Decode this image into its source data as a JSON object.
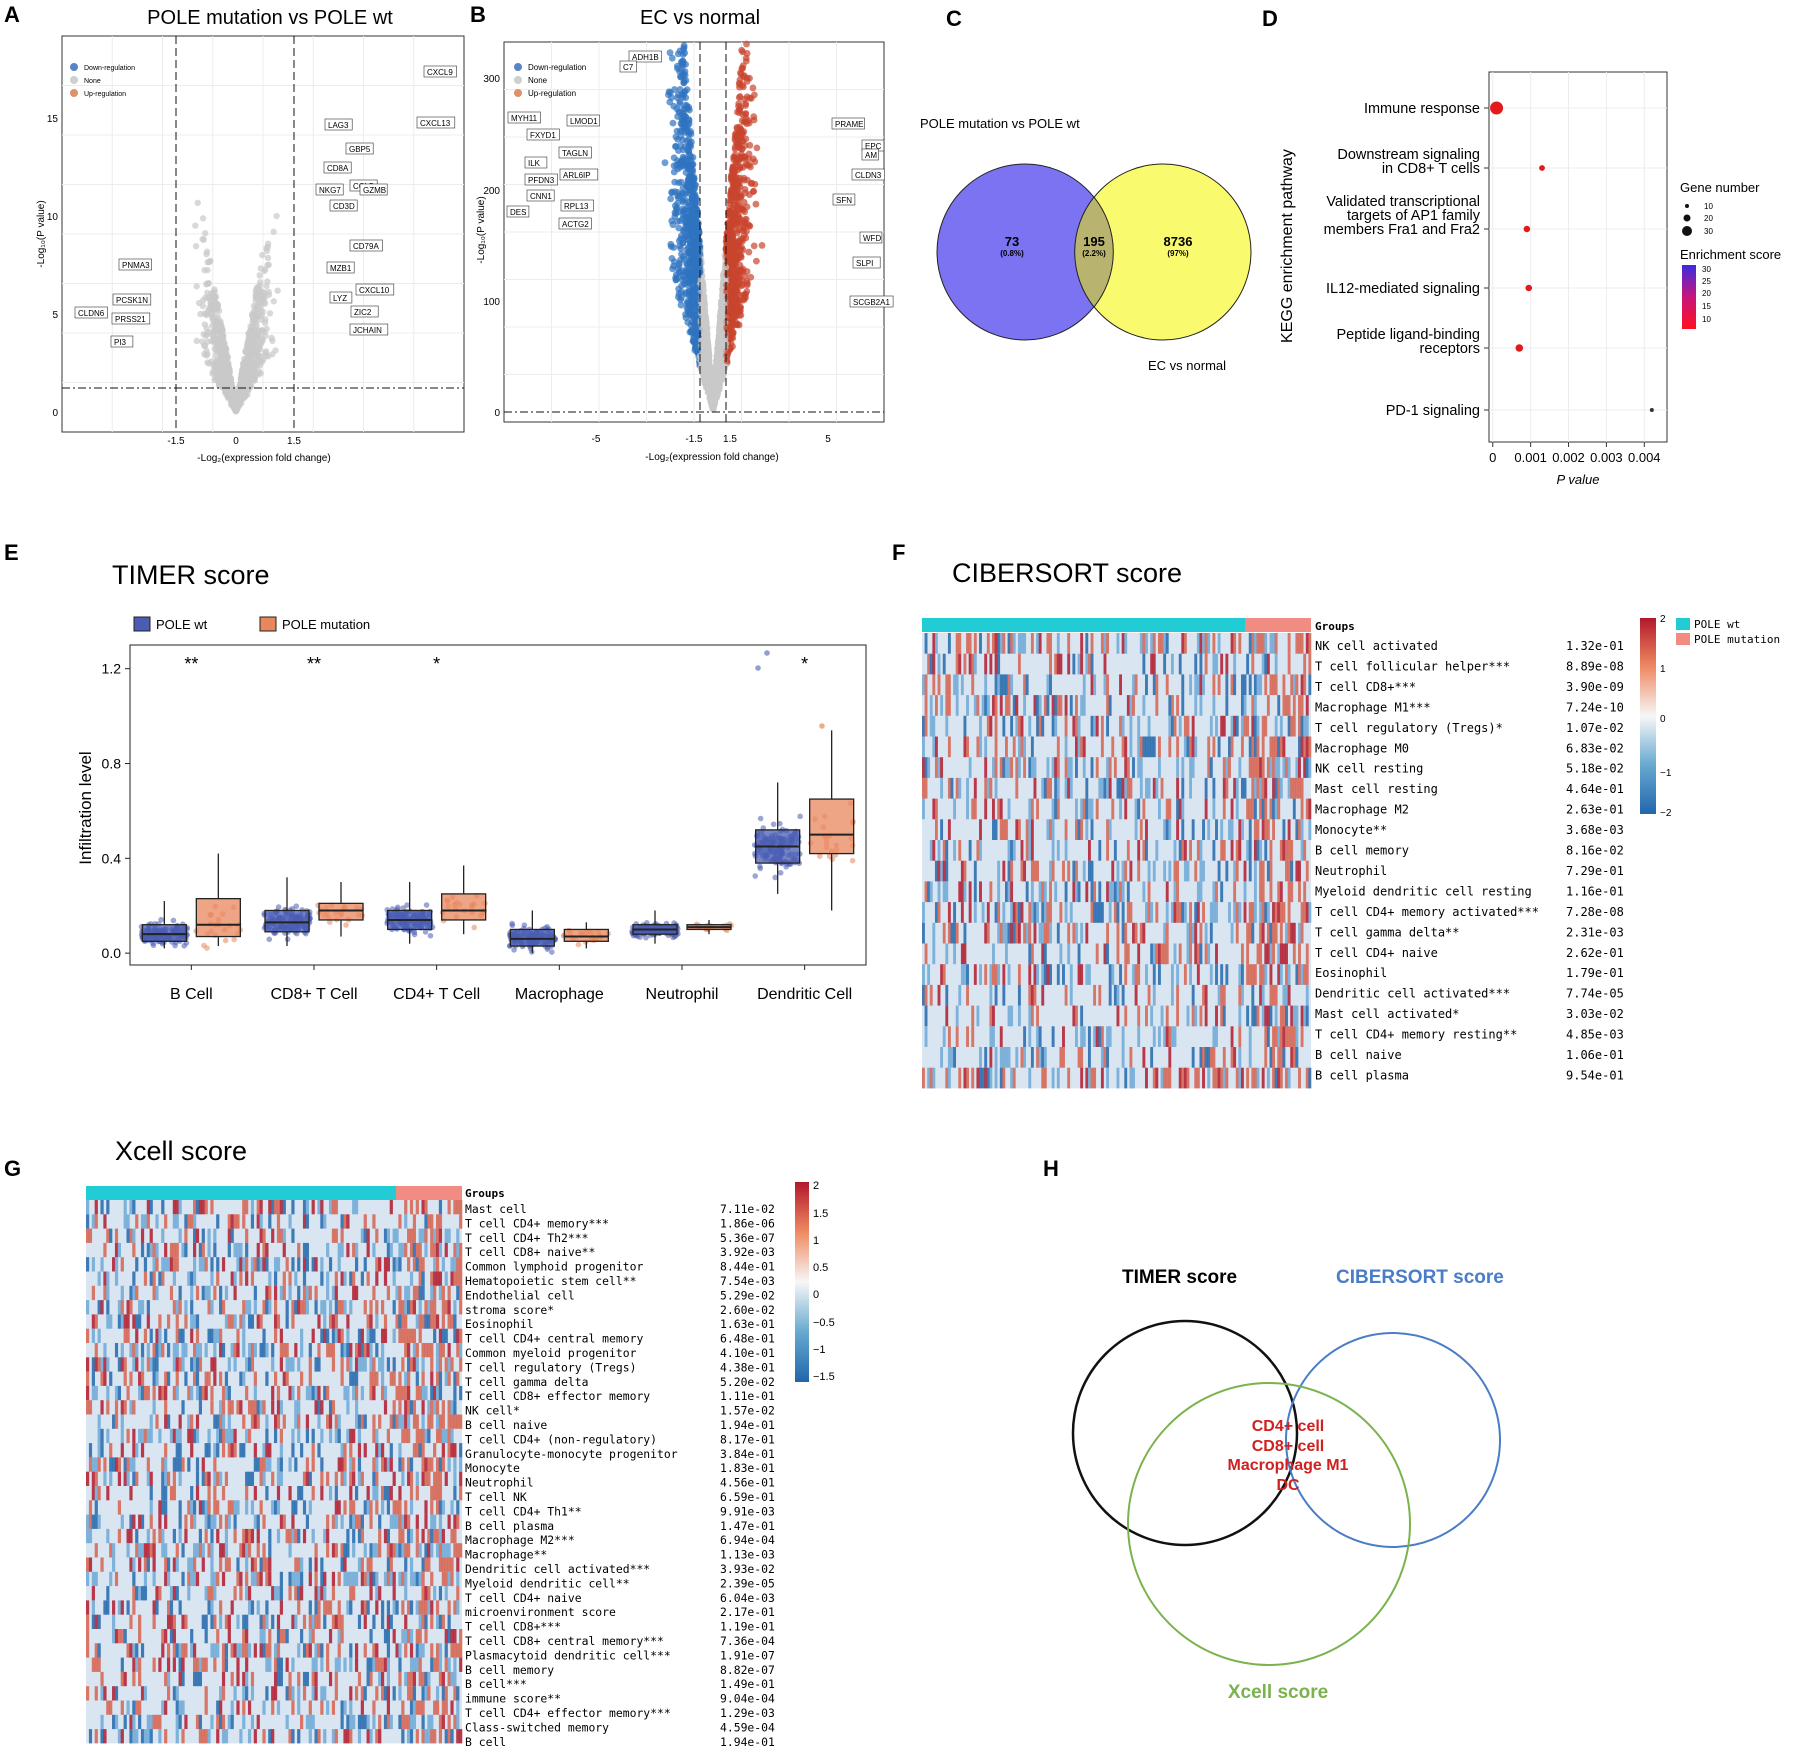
{
  "panels": {
    "A": {
      "letter": "A",
      "title": "POLE mutation vs POLE wt",
      "xlabel": "-Log₂(expression fold change)",
      "ylabel": "-Log₁₀(P value)",
      "legend": [
        "Down-regulation",
        "None",
        "Up-regulation"
      ],
      "xticks": [
        "-1.5",
        "0",
        "1.5"
      ],
      "yticks": [
        "0",
        "5",
        "10",
        "15"
      ],
      "genes_up": [
        "CXCL9",
        "CXCL13",
        "LAG3",
        "GBP5",
        "CD8A",
        "CCL5",
        "CD3D",
        "NKG7",
        "GZMB",
        "CD79A",
        "MZB1",
        "CXCL10",
        "LYZ",
        "ZIC2",
        "JCHAIN"
      ],
      "genes_down": [
        "PNMA3",
        "PCSK1N",
        "CLDN6",
        "PRSS21",
        "PI3"
      ]
    },
    "B": {
      "letter": "B",
      "title": "EC vs  normal",
      "xlabel": "-Log₂(expression fold change)",
      "ylabel": "-Log₁₀(P value)",
      "legend": [
        "Down-regulation",
        "None",
        "Up-regulation"
      ],
      "xticks": [
        "-5",
        "-1.5",
        "1.5",
        "5"
      ],
      "yticks": [
        "0",
        "100",
        "200",
        "300"
      ],
      "genes_up": [
        "PRAME",
        "EPC",
        "AM",
        "CLDN3",
        "SFN",
        "WFD",
        "SLPI",
        "SCGB2A1"
      ],
      "genes_down": [
        "ADH1B",
        "C7",
        "MYH11",
        "LMOD1",
        "FXYD1",
        "TAGLN",
        "ILK",
        "ARL6IP",
        "PFDN3",
        "CNN1",
        "RPL13",
        "DES",
        "ACTG2"
      ]
    },
    "C": {
      "letter": "C",
      "label_left": "POLE mutation vs POLE wt",
      "label_right": "EC vs  normal",
      "left_n": "73",
      "left_pct": "(0.8%)",
      "mid_n": "195",
      "mid_pct": "(2.2%)",
      "right_n": "8736",
      "right_pct": "(97%)"
    },
    "D": {
      "letter": "D",
      "ylabel": "KEGG enrichment pathway",
      "xlabel": "P value",
      "xticks": [
        "0",
        "0.001",
        "0.002",
        "0.003",
        "0.004"
      ],
      "gene_number_title": "Gene number",
      "gene_number_ticks": [
        "10",
        "20",
        "30"
      ],
      "enrich_title": "Enrichment score",
      "enrich_ticks": [
        "30",
        "25",
        "20",
        "15",
        "10"
      ]
    },
    "E": {
      "letter": "E",
      "title": "TIMER score",
      "ylabel": "Infiltration level",
      "legend": [
        "POLE  wt",
        "POLE  mutation"
      ],
      "yticks": [
        "0.0",
        "0.4",
        "0.8",
        "1.2"
      ],
      "stars": [
        "**",
        "**",
        "*",
        "",
        "",
        "*"
      ]
    },
    "F": {
      "letter": "F",
      "title": "CIBERSORT  score",
      "groups_label": "Groups",
      "legend": [
        "POLE wt",
        "POLE mutation"
      ],
      "scale": [
        "2",
        "1",
        "0",
        "−1",
        "−2"
      ],
      "rows": [
        [
          "NK cell activated",
          "1.32e-01"
        ],
        [
          "T cell follicular helper***",
          "8.89e-08"
        ],
        [
          "T cell CD8+***",
          "3.90e-09"
        ],
        [
          "Macrophage M1***",
          "7.24e-10"
        ],
        [
          "T cell regulatory (Tregs)*",
          "1.07e-02"
        ],
        [
          "Macrophage M0",
          "6.83e-02"
        ],
        [
          "NK cell resting",
          "5.18e-02"
        ],
        [
          "Mast cell resting",
          "4.64e-01"
        ],
        [
          "Macrophage M2",
          "2.63e-01"
        ],
        [
          "Monocyte**",
          "3.68e-03"
        ],
        [
          "B cell memory",
          "8.16e-02"
        ],
        [
          "Neutrophil",
          "7.29e-01"
        ],
        [
          "Myeloid dendritic cell resting",
          "1.16e-01"
        ],
        [
          "T cell CD4+ memory activated***",
          "7.28e-08"
        ],
        [
          "T cell gamma delta**",
          "2.31e-03"
        ],
        [
          "T cell CD4+ naive",
          "2.62e-01"
        ],
        [
          "Eosinophil",
          "1.79e-01"
        ],
        [
          "Dendritic cell activated***",
          "7.74e-05"
        ],
        [
          "Mast cell activated*",
          "3.03e-02"
        ],
        [
          "T cell CD4+ memory resting**",
          "4.85e-03"
        ],
        [
          "B cell naive",
          "1.06e-01"
        ],
        [
          "B cell plasma",
          "9.54e-01"
        ]
      ]
    },
    "G": {
      "letter": "G",
      "title": "Xcell  score",
      "groups_label": "Groups",
      "scale": [
        "2",
        "1.5",
        "1",
        "0.5",
        "0",
        "−0.5",
        "−1",
        "−1.5"
      ],
      "rows": [
        [
          "Mast cell",
          "7.11e-02"
        ],
        [
          "T cell CD4+ memory***",
          "1.86e-06"
        ],
        [
          "T cell CD4+ Th2***",
          "5.36e-07"
        ],
        [
          "T cell CD8+ naive**",
          "3.92e-03"
        ],
        [
          "Common lymphoid progenitor",
          "8.44e-01"
        ],
        [
          "Hematopoietic stem cell**",
          "7.54e-03"
        ],
        [
          "Endothelial cell",
          "5.29e-02"
        ],
        [
          "stroma score*",
          "2.60e-02"
        ],
        [
          "Eosinophil",
          "1.63e-01"
        ],
        [
          "T cell CD4+ central memory",
          "6.48e-01"
        ],
        [
          "Common myeloid progenitor",
          "4.10e-01"
        ],
        [
          "T cell regulatory (Tregs)",
          "4.38e-01"
        ],
        [
          "T cell gamma delta",
          "5.20e-02"
        ],
        [
          "T cell CD8+ effector memory",
          "1.11e-01"
        ],
        [
          "NK cell*",
          "1.57e-02"
        ],
        [
          "B cell naive",
          "1.94e-01"
        ],
        [
          "T cell CD4+ (non-regulatory)",
          "8.17e-01"
        ],
        [
          "Granulocyte-monocyte progenitor",
          "3.84e-01"
        ],
        [
          "Monocyte",
          "1.83e-01"
        ],
        [
          "Neutrophil",
          "4.56e-01"
        ],
        [
          "T cell NK",
          "6.59e-01"
        ],
        [
          "T cell CD4+ Th1**",
          "9.91e-03"
        ],
        [
          "B cell plasma",
          "1.47e-01"
        ],
        [
          "Macrophage M2***",
          "6.94e-04"
        ],
        [
          "Macrophage**",
          "1.13e-03"
        ],
        [
          "Dendritic cell activated***",
          "3.93e-02"
        ],
        [
          "Myeloid dendritic cell**",
          "2.39e-05"
        ],
        [
          "T cell CD4+ naive",
          "6.04e-03"
        ],
        [
          "microenvironment score",
          "2.17e-01"
        ],
        [
          "T cell CD8+***",
          "1.19e-01"
        ],
        [
          "T cell CD8+ central memory***",
          "7.36e-04"
        ],
        [
          "Plasmacytoid dendritic cell***",
          "1.91e-07"
        ],
        [
          "B cell memory",
          "8.82e-07"
        ],
        [
          "B cell***",
          "1.49e-01"
        ],
        [
          "immune score**",
          "9.04e-04"
        ],
        [
          "T cell CD4+ effector memory***",
          "1.29e-03"
        ],
        [
          "Class-switched memory",
          "4.59e-04"
        ],
        [
          "B cell",
          "1.94e-01"
        ]
      ]
    },
    "H": {
      "letter": "H",
      "timer": "TIMER score",
      "cibersort": "CIBERSORT score",
      "xcell": "Xcell score",
      "overlap": [
        "CD4+ cell",
        "CD8+ cell",
        "Macrophage M1",
        "DC"
      ]
    }
  },
  "chart_data": [
    {
      "panel": "D",
      "type": "scatter",
      "title": "KEGG enrichment pathway",
      "xlabel": "P value",
      "categories": [
        "Immune response",
        "Downstream signaling in CD8+ T cells",
        "Validated transcriptional targets of AP1 family members Fra1 and Fra2",
        "IL12-mediated signaling",
        "Peptide ligand-binding receptors",
        "PD-1 signaling"
      ],
      "cat_lines": [
        [
          "Immune response"
        ],
        [
          "Downstream signaling",
          "in CD8+ T cells"
        ],
        [
          "Validated transcriptional",
          "targets of AP1 family",
          "members Fra1 and Fra2"
        ],
        [
          "IL12-mediated signaling"
        ],
        [
          "Peptide ligand-binding",
          "receptors"
        ],
        [
          "PD-1 signaling"
        ]
      ],
      "pvalues": [
        0.0001,
        0.0013,
        0.0009,
        0.00095,
        0.0007,
        0.0042
      ],
      "gene_number": [
        30,
        10,
        12,
        12,
        15,
        5
      ],
      "xlim": [
        -0.0001,
        0.0046
      ]
    },
    {
      "panel": "E",
      "type": "box",
      "title": "TIMER score",
      "ylabel": "Infiltration level",
      "ylim": [
        0,
        1.3
      ],
      "categories": [
        "B Cell",
        "CD8+ T Cell",
        "CD4+ T Cell",
        "Macrophage",
        "Neutrophil",
        "Dendritic Cell"
      ],
      "series": [
        {
          "name": "POLE  wt",
          "color": "#4a5db3",
          "boxes": [
            [
              0.02,
              0.05,
              0.08,
              0.12,
              0.22
            ],
            [
              0.03,
              0.09,
              0.13,
              0.18,
              0.32
            ],
            [
              0.04,
              0.1,
              0.14,
              0.18,
              0.3
            ],
            [
              0.0,
              0.03,
              0.06,
              0.1,
              0.18
            ],
            [
              0.04,
              0.08,
              0.1,
              0.12,
              0.18
            ],
            [
              0.25,
              0.38,
              0.45,
              0.52,
              0.72
            ]
          ]
        },
        {
          "name": "POLE  mutation",
          "color": "#e8875c",
          "boxes": [
            [
              0.03,
              0.07,
              0.12,
              0.23,
              0.42
            ],
            [
              0.07,
              0.14,
              0.18,
              0.21,
              0.3
            ],
            [
              0.08,
              0.14,
              0.18,
              0.25,
              0.37
            ],
            [
              0.02,
              0.05,
              0.07,
              0.1,
              0.13
            ],
            [
              0.08,
              0.1,
              0.11,
              0.12,
              0.14
            ],
            [
              0.18,
              0.42,
              0.5,
              0.65,
              0.94
            ]
          ]
        }
      ]
    }
  ]
}
